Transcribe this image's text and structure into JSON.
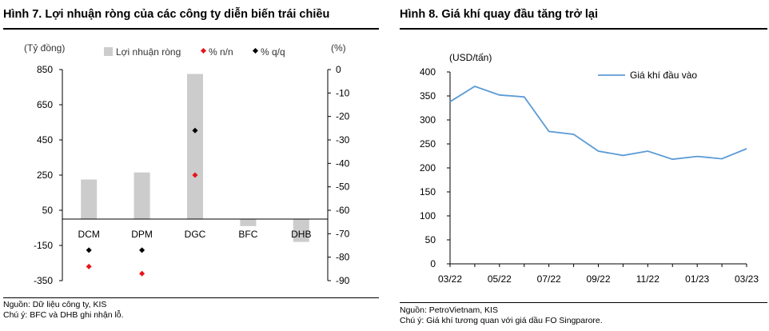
{
  "charts": [
    {
      "title": "Hình 7. Lợi nhuận ròng của các công ty diễn biến trái chiều",
      "source": "Nguồn: Dữ liệu công ty, KIS",
      "note": "Chú ý: BFC và DHB ghi nhận lỗ."
    },
    {
      "title": "Hình 8. Giá khí quay đầu tăng trở lại",
      "source": "Nguồn: PetroVietnam, KIS",
      "note": "Chú ý: Giá khí tương quan với giá dầu FO Singparore."
    }
  ],
  "colors": {
    "bar": "#cccccc",
    "yoy": "#e8141b",
    "qoq": "#000000",
    "line": "#5b9bd5",
    "axis": "#000000"
  },
  "chart_data": [
    {
      "type": "bar",
      "categories": [
        "DCM",
        "DPM",
        "DGC",
        "BFC",
        "DHB"
      ],
      "ylabel": "(Tỷ đồng)",
      "y2label": "(%)",
      "ylim": [
        -350,
        850
      ],
      "yticks": [
        850,
        650,
        450,
        250,
        50,
        -150,
        -350
      ],
      "y2lim": [
        -90,
        0
      ],
      "y2ticks": [
        0,
        -10,
        -20,
        -30,
        -40,
        -50,
        -60,
        -70,
        -80,
        -90
      ],
      "legend_position": "top",
      "grid": false,
      "series": [
        {
          "name": "Lợi nhuận ròng",
          "kind": "bar",
          "axis": "left",
          "values": [
            225,
            265,
            825,
            -40,
            -130
          ]
        },
        {
          "name": "% n/n",
          "kind": "marker",
          "axis": "right",
          "values": [
            -84,
            -87,
            -45,
            null,
            null
          ]
        },
        {
          "name": "% q/q",
          "kind": "marker",
          "axis": "right",
          "values": [
            -77,
            -77,
            -26,
            null,
            null
          ]
        }
      ]
    },
    {
      "type": "line",
      "ylabel": "(USD/tấn)",
      "ylim": [
        0,
        400
      ],
      "yticks": [
        0,
        50,
        100,
        150,
        200,
        250,
        300,
        350,
        400
      ],
      "xticklabels": [
        "03/22",
        "05/22",
        "07/22",
        "09/22",
        "11/22",
        "01/23",
        "03/23"
      ],
      "legend_position": "top-right",
      "grid": false,
      "series": [
        {
          "name": "Giá khí đầu vào",
          "x": [
            "03/22",
            "04/22",
            "05/22",
            "06/22",
            "07/22",
            "08/22",
            "09/22",
            "10/22",
            "11/22",
            "12/22",
            "01/23",
            "02/23",
            "03/23"
          ],
          "values": [
            338,
            370,
            352,
            348,
            276,
            270,
            235,
            226,
            235,
            218,
            224,
            219,
            240
          ]
        }
      ]
    }
  ]
}
